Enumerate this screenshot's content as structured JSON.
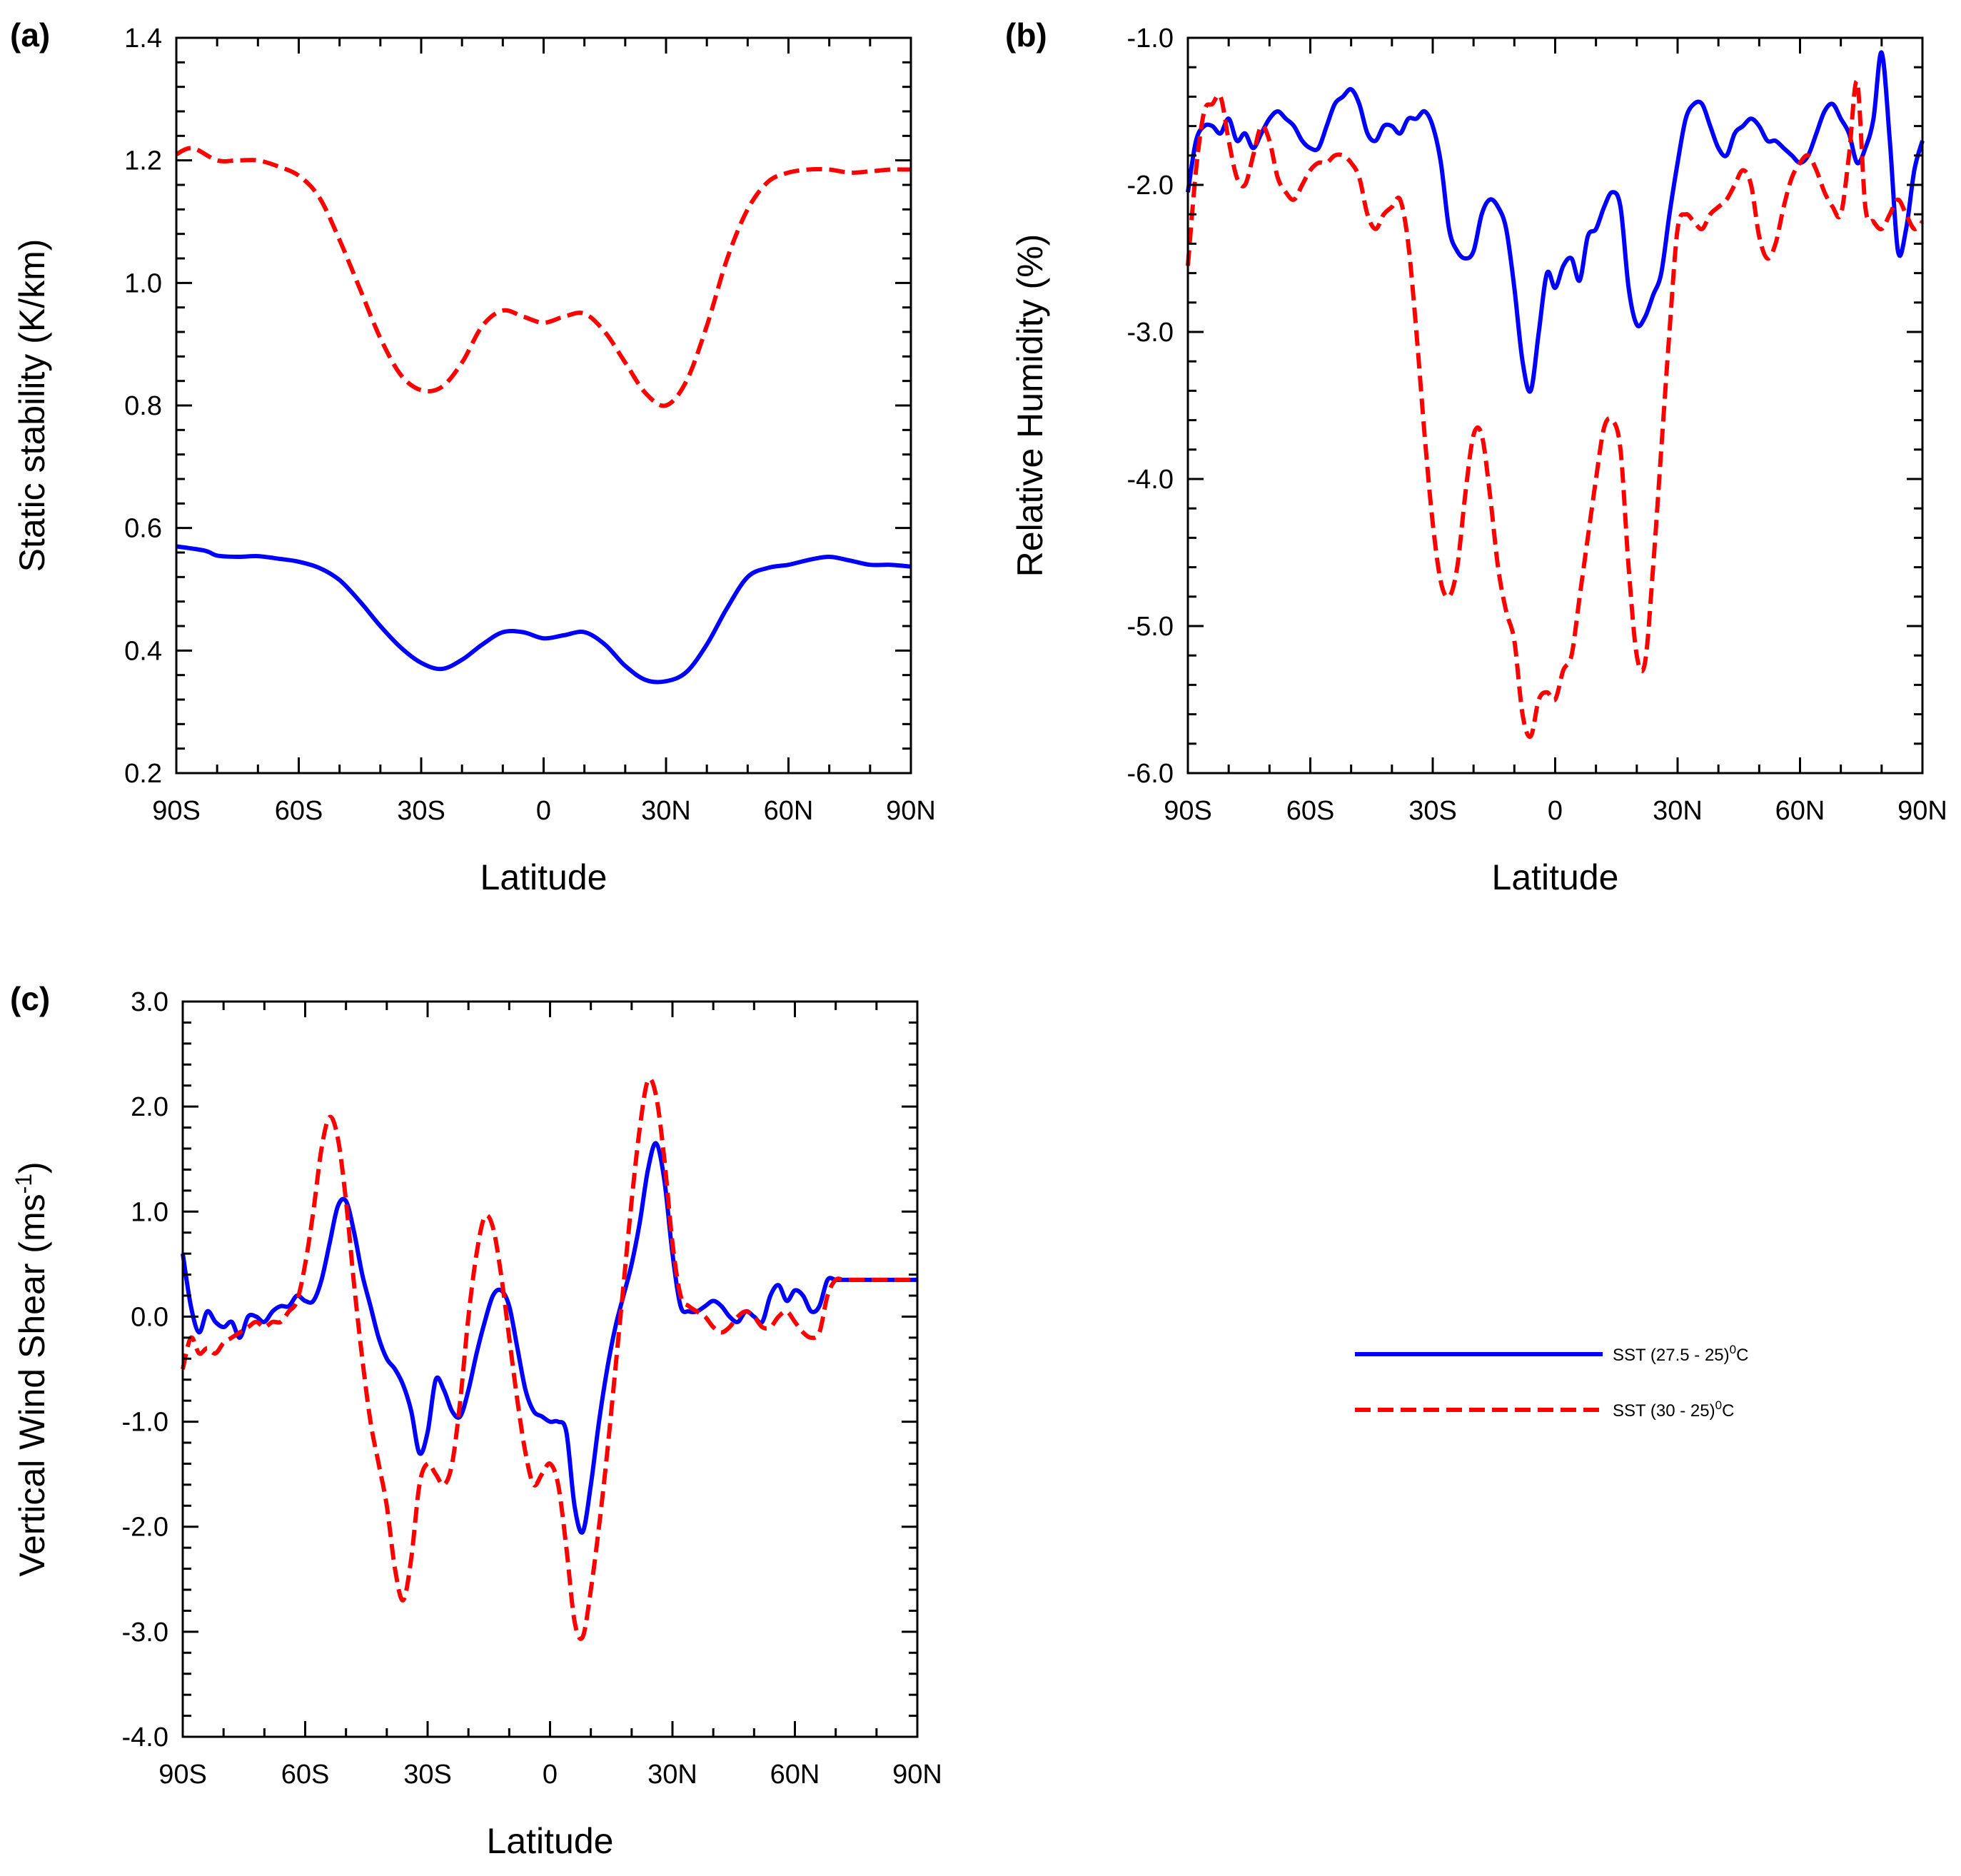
{
  "chart_data": [
    {
      "type": "line",
      "panel": "(a)",
      "xlabel": "Latitude",
      "ylabel": "Static stability (K/km)",
      "xlim": [
        -90,
        90
      ],
      "ylim": [
        0.2,
        1.4
      ],
      "xticks": [
        -90,
        -60,
        -30,
        0,
        30,
        60,
        90
      ],
      "xtick_labels": [
        "90S",
        "60S",
        "30S",
        "0",
        "30N",
        "60N",
        "90N"
      ],
      "yticks": [
        0.2,
        0.4,
        0.6,
        0.8,
        1.0,
        1.2,
        1.4
      ],
      "ytick_labels": [
        "0.2",
        "0.4",
        "0.6",
        "0.8",
        "1.0",
        "1.2",
        "1.4"
      ],
      "series": [
        {
          "name": "SST (27.5 - 25)°C",
          "color": "#0000ff",
          "dash": "solid",
          "x": [
            -90,
            -83,
            -80,
            -75,
            -70,
            -65,
            -60,
            -55,
            -50,
            -45,
            -40,
            -35,
            -30,
            -25,
            -20,
            -15,
            -10,
            -5,
            0,
            5,
            10,
            15,
            20,
            25,
            30,
            35,
            40,
            45,
            50,
            55,
            60,
            65,
            70,
            75,
            80,
            85,
            90
          ],
          "y": [
            0.57,
            0.563,
            0.555,
            0.553,
            0.554,
            0.55,
            0.545,
            0.535,
            0.515,
            0.48,
            0.44,
            0.405,
            0.38,
            0.37,
            0.385,
            0.41,
            0.43,
            0.43,
            0.42,
            0.425,
            0.43,
            0.41,
            0.375,
            0.352,
            0.35,
            0.365,
            0.41,
            0.47,
            0.52,
            0.535,
            0.54,
            0.548,
            0.553,
            0.547,
            0.54,
            0.54,
            0.537
          ]
        },
        {
          "name": "SST (30 - 25)°C",
          "color": "#ff0000",
          "dash": "dashed",
          "x": [
            -90,
            -86,
            -80,
            -75,
            -70,
            -65,
            -60,
            -55,
            -50,
            -45,
            -40,
            -35,
            -30,
            -25,
            -20,
            -15,
            -10,
            -5,
            0,
            5,
            10,
            15,
            20,
            25,
            30,
            35,
            40,
            45,
            50,
            55,
            60,
            65,
            70,
            75,
            80,
            85,
            90
          ],
          "y": [
            1.21,
            1.22,
            1.2,
            1.2,
            1.2,
            1.19,
            1.175,
            1.14,
            1.07,
            0.99,
            0.91,
            0.85,
            0.825,
            0.83,
            0.87,
            0.93,
            0.955,
            0.945,
            0.935,
            0.945,
            0.95,
            0.92,
            0.87,
            0.82,
            0.8,
            0.84,
            0.93,
            1.04,
            1.12,
            1.165,
            1.18,
            1.185,
            1.185,
            1.18,
            1.182,
            1.185,
            1.185
          ]
        }
      ]
    },
    {
      "type": "line",
      "panel": "(b)",
      "xlabel": "Latitude",
      "ylabel": "Relative Humidity (%)",
      "xlim": [
        -90,
        90
      ],
      "ylim": [
        -6.0,
        -1.0
      ],
      "xticks": [
        -90,
        -60,
        -30,
        0,
        30,
        60,
        90
      ],
      "xtick_labels": [
        "90S",
        "60S",
        "30S",
        "0",
        "30N",
        "60N",
        "90N"
      ],
      "yticks": [
        -6.0,
        -5.0,
        -4.0,
        -3.0,
        -2.0,
        -1.0
      ],
      "ytick_labels": [
        "-6.0",
        "-5.0",
        "-4.0",
        "-3.0",
        "-2.0",
        "-1.0"
      ],
      "series": [
        {
          "name": "SST (27.5 - 25)°C",
          "color": "#0000ff",
          "dash": "solid",
          "x": [
            -90,
            -88,
            -86,
            -84,
            -82,
            -80,
            -78,
            -76,
            -74,
            -72,
            -70,
            -68,
            -66,
            -64,
            -62,
            -60,
            -58,
            -56,
            -54,
            -52,
            -50,
            -48,
            -46,
            -44,
            -42,
            -40,
            -38,
            -36,
            -34,
            -32,
            -30,
            -28,
            -26,
            -24,
            -22,
            -20,
            -18,
            -16,
            -14,
            -12,
            -10,
            -8,
            -6,
            -4,
            -2,
            0,
            2,
            4,
            6,
            8,
            10,
            12,
            14,
            16,
            18,
            20,
            22,
            24,
            26,
            28,
            30,
            32,
            34,
            36,
            38,
            40,
            42,
            44,
            46,
            48,
            50,
            52,
            54,
            56,
            58,
            60,
            62,
            64,
            66,
            68,
            70,
            72,
            74,
            76,
            78,
            80,
            82,
            84,
            86,
            88,
            90
          ],
          "y": [
            -2.05,
            -1.7,
            -1.6,
            -1.6,
            -1.65,
            -1.55,
            -1.7,
            -1.65,
            -1.75,
            -1.65,
            -1.55,
            -1.5,
            -1.55,
            -1.6,
            -1.7,
            -1.75,
            -1.75,
            -1.6,
            -1.45,
            -1.4,
            -1.35,
            -1.45,
            -1.65,
            -1.7,
            -1.6,
            -1.6,
            -1.65,
            -1.55,
            -1.55,
            -1.5,
            -1.6,
            -1.85,
            -2.3,
            -2.45,
            -2.5,
            -2.45,
            -2.2,
            -2.1,
            -2.15,
            -2.3,
            -2.7,
            -3.2,
            -3.4,
            -3.0,
            -2.6,
            -2.7,
            -2.55,
            -2.5,
            -2.65,
            -2.35,
            -2.3,
            -2.15,
            -2.05,
            -2.15,
            -2.7,
            -2.95,
            -2.9,
            -2.75,
            -2.6,
            -2.2,
            -1.85,
            -1.55,
            -1.45,
            -1.45,
            -1.6,
            -1.75,
            -1.8,
            -1.65,
            -1.6,
            -1.55,
            -1.6,
            -1.7,
            -1.7,
            -1.75,
            -1.8,
            -1.85,
            -1.8,
            -1.65,
            -1.5,
            -1.45,
            -1.55,
            -1.65,
            -1.85,
            -1.75,
            -1.55,
            -1.1,
            -1.7,
            -2.45,
            -2.3,
            -1.9,
            -1.7
          ]
        },
        {
          "name": "SST (30 - 25)°C",
          "color": "#ff0000",
          "dash": "dashed",
          "x": [
            -90,
            -88,
            -86,
            -84,
            -82,
            -80,
            -78,
            -76,
            -74,
            -72,
            -70,
            -68,
            -66,
            -64,
            -62,
            -60,
            -58,
            -56,
            -54,
            -52,
            -50,
            -48,
            -46,
            -44,
            -42,
            -40,
            -38,
            -36,
            -34,
            -32,
            -30,
            -28,
            -26,
            -24,
            -22,
            -20,
            -18,
            -16,
            -14,
            -12,
            -10,
            -8,
            -6,
            -4,
            -2,
            0,
            2,
            4,
            6,
            8,
            10,
            12,
            14,
            16,
            18,
            20,
            22,
            24,
            26,
            28,
            30,
            32,
            34,
            36,
            38,
            40,
            42,
            44,
            46,
            48,
            50,
            52,
            54,
            56,
            58,
            60,
            62,
            64,
            66,
            68,
            70,
            72,
            74,
            76,
            78,
            80,
            82,
            84,
            86,
            88,
            90
          ],
          "y": [
            -2.55,
            -1.9,
            -1.5,
            -1.45,
            -1.4,
            -1.7,
            -1.95,
            -2.0,
            -1.8,
            -1.6,
            -1.7,
            -1.95,
            -2.05,
            -2.1,
            -2.0,
            -1.9,
            -1.85,
            -1.85,
            -1.8,
            -1.8,
            -1.85,
            -1.95,
            -2.2,
            -2.3,
            -2.2,
            -2.15,
            -2.1,
            -2.4,
            -3.0,
            -3.7,
            -4.3,
            -4.7,
            -4.8,
            -4.6,
            -4.1,
            -3.7,
            -3.7,
            -4.1,
            -4.6,
            -4.9,
            -5.1,
            -5.6,
            -5.75,
            -5.5,
            -5.45,
            -5.5,
            -5.3,
            -5.2,
            -4.8,
            -4.4,
            -4.0,
            -3.65,
            -3.6,
            -3.8,
            -4.6,
            -5.2,
            -5.25,
            -4.6,
            -3.8,
            -3.0,
            -2.3,
            -2.2,
            -2.25,
            -2.3,
            -2.2,
            -2.15,
            -2.1,
            -2.0,
            -1.9,
            -2.0,
            -2.35,
            -2.5,
            -2.4,
            -2.15,
            -1.95,
            -1.85,
            -1.8,
            -1.9,
            -2.05,
            -2.15,
            -2.2,
            -1.8,
            -1.3,
            -2.15,
            -2.25,
            -2.3,
            -2.2,
            -2.1,
            -2.2,
            -2.3,
            -2.25
          ]
        }
      ]
    },
    {
      "type": "line",
      "panel": "(c)",
      "xlabel": "Latitude",
      "ylabel": "Vertical Wind Shear (ms",
      "ylabel_sup": "-1",
      "ylabel_end": ")",
      "xlim": [
        -90,
        90
      ],
      "ylim": [
        -4.0,
        3.0
      ],
      "xticks": [
        -90,
        -60,
        -30,
        0,
        30,
        60,
        90
      ],
      "xtick_labels": [
        "90S",
        "60S",
        "30S",
        "0",
        "30N",
        "60N",
        "90N"
      ],
      "yticks": [
        -4.0,
        -3.0,
        -2.0,
        -1.0,
        0.0,
        1.0,
        2.0,
        3.0
      ],
      "ytick_labels": [
        "-4.0",
        "-3.0",
        "-2.0",
        "-1.0",
        "0.0",
        "1.0",
        "2.0",
        "3.0"
      ],
      "series": [
        {
          "name": "SST (27.5 - 25)°C",
          "color": "#0000ff",
          "dash": "solid",
          "x": [
            -90,
            -88,
            -86,
            -84,
            -82,
            -80,
            -78,
            -76,
            -74,
            -72,
            -70,
            -68,
            -66,
            -64,
            -62,
            -60,
            -58,
            -56,
            -54,
            -52,
            -50,
            -48,
            -46,
            -44,
            -42,
            -40,
            -38,
            -36,
            -34,
            -32,
            -30,
            -28,
            -26,
            -24,
            -22,
            -20,
            -18,
            -16,
            -14,
            -12,
            -10,
            -8,
            -6,
            -4,
            -2,
            0,
            2,
            4,
            6,
            8,
            10,
            12,
            14,
            16,
            18,
            20,
            22,
            24,
            26,
            28,
            30,
            32,
            34,
            36,
            38,
            40,
            42,
            44,
            46,
            48,
            50,
            52,
            54,
            56,
            58,
            60,
            62,
            64,
            66,
            68,
            70,
            72,
            74,
            76,
            78,
            80,
            82,
            84,
            86,
            88,
            90
          ],
          "y": [
            0.6,
            0.1,
            -0.15,
            0.05,
            -0.05,
            -0.1,
            -0.05,
            -0.2,
            0.0,
            0.0,
            -0.05,
            0.05,
            0.1,
            0.1,
            0.2,
            0.15,
            0.15,
            0.35,
            0.7,
            1.05,
            1.1,
            0.8,
            0.4,
            0.1,
            -0.2,
            -0.4,
            -0.5,
            -0.65,
            -0.9,
            -1.3,
            -1.1,
            -0.6,
            -0.7,
            -0.9,
            -0.95,
            -0.7,
            -0.35,
            -0.05,
            0.2,
            0.25,
            0.1,
            -0.3,
            -0.7,
            -0.9,
            -0.95,
            -1.0,
            -1.0,
            -1.1,
            -1.8,
            -2.05,
            -1.6,
            -1.0,
            -0.5,
            -0.1,
            0.2,
            0.5,
            0.9,
            1.4,
            1.65,
            1.3,
            0.6,
            0.1,
            0.05,
            0.05,
            0.1,
            0.15,
            0.1,
            0.0,
            -0.05,
            0.05,
            0.0,
            -0.05,
            0.2,
            0.3,
            0.15,
            0.25,
            0.2,
            0.05,
            0.1,
            0.35,
            0.35,
            0.35,
            0.35,
            0.35,
            0.35,
            0.35,
            0.35,
            0.35,
            0.35,
            0.35,
            0.35
          ]
        },
        {
          "name": "SST (30 - 25)°C",
          "color": "#ff0000",
          "dash": "dashed",
          "x": [
            -90,
            -88,
            -86,
            -84,
            -82,
            -80,
            -78,
            -76,
            -74,
            -72,
            -70,
            -68,
            -66,
            -64,
            -62,
            -60,
            -58,
            -56,
            -54,
            -52,
            -50,
            -48,
            -46,
            -44,
            -42,
            -40,
            -38,
            -36,
            -34,
            -32,
            -30,
            -28,
            -26,
            -24,
            -22,
            -20,
            -18,
            -16,
            -14,
            -12,
            -10,
            -8,
            -6,
            -4,
            -2,
            0,
            2,
            4,
            6,
            8,
            10,
            12,
            14,
            16,
            18,
            20,
            22,
            24,
            26,
            28,
            30,
            32,
            34,
            36,
            38,
            40,
            42,
            44,
            46,
            48,
            50,
            52,
            54,
            56,
            58,
            60,
            62,
            64,
            66,
            68,
            70,
            72,
            74,
            76,
            78,
            80,
            82,
            84,
            86,
            88,
            90
          ],
          "y": [
            -0.5,
            -0.2,
            -0.35,
            -0.3,
            -0.35,
            -0.25,
            -0.2,
            -0.15,
            -0.1,
            -0.05,
            -0.1,
            -0.05,
            -0.05,
            0.05,
            0.15,
            0.5,
            1.0,
            1.6,
            1.9,
            1.7,
            1.1,
            0.3,
            -0.4,
            -1.0,
            -1.4,
            -1.8,
            -2.4,
            -2.7,
            -2.3,
            -1.6,
            -1.4,
            -1.5,
            -1.6,
            -1.4,
            -0.8,
            0.0,
            0.6,
            0.95,
            0.85,
            0.4,
            -0.2,
            -0.8,
            -1.3,
            -1.6,
            -1.5,
            -1.4,
            -1.6,
            -2.2,
            -2.9,
            -3.05,
            -2.6,
            -2.0,
            -1.3,
            -0.5,
            0.3,
            1.1,
            1.8,
            2.25,
            2.1,
            1.5,
            0.7,
            0.2,
            0.1,
            0.05,
            0.0,
            -0.1,
            -0.15,
            -0.1,
            0.0,
            0.05,
            0.0,
            -0.1,
            -0.1,
            0.0,
            0.05,
            -0.05,
            -0.15,
            -0.2,
            -0.15,
            0.2,
            0.35,
            0.35,
            0.35,
            0.35,
            0.35,
            0.35,
            0.35,
            0.35,
            0.35,
            0.35,
            0.35
          ]
        }
      ]
    }
  ],
  "legend": {
    "position": "right of panel (c)",
    "entries": [
      {
        "prefix": "SST (27.5 - 25)",
        "sup": "0",
        "suffix": "C",
        "color": "#0000ff",
        "dash": "solid"
      },
      {
        "prefix": "SST (30 - 25)",
        "sup": "0",
        "suffix": "C",
        "color": "#ff0000",
        "dash": "dashed"
      }
    ]
  }
}
